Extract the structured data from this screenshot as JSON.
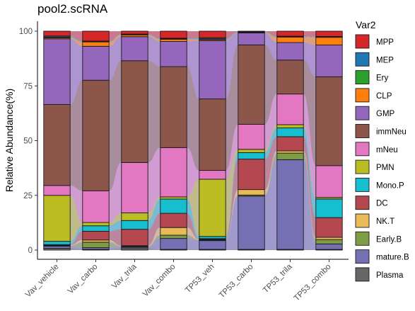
{
  "chart_data": {
    "type": "bar",
    "subtype": "stacked-alluvial",
    "title": "pool2.scRNA",
    "xlabel": "",
    "ylabel": "Relative Abundance(%)",
    "ylim": [
      0,
      100
    ],
    "yticks": [
      0,
      25,
      50,
      75,
      100
    ],
    "grid": false,
    "legend_title": "Var2",
    "legend_position": "right",
    "categories": [
      "Vav_vehicle",
      "Vav_carbo",
      "Vav_trila",
      "Vav_combo",
      "TP53_veh",
      "TP53_carbo",
      "TP53_trila",
      "TP53_combo"
    ],
    "series": [
      {
        "name": "Plasma",
        "color": "#666666",
        "values": [
          0.8,
          0.3,
          1.0,
          0.3,
          0.3,
          0.3,
          0.3,
          0.3
        ]
      },
      {
        "name": "mature.B",
        "color": "#7570B3",
        "values": [
          1.0,
          0.8,
          0.5,
          5.0,
          4.0,
          24.5,
          41.0,
          2.5
        ]
      },
      {
        "name": "Early.B",
        "color": "#7D9C45",
        "values": [
          0.2,
          2.5,
          0.3,
          1.5,
          0.3,
          0.5,
          3.0,
          2.0
        ]
      },
      {
        "name": "NK.T",
        "color": "#E9BA58",
        "values": [
          0.3,
          1.0,
          0.2,
          3.5,
          0.3,
          2.5,
          1.0,
          1.0
        ]
      },
      {
        "name": "DC",
        "color": "#B4474F",
        "values": [
          0.2,
          4.0,
          7.5,
          6.5,
          0.3,
          14.0,
          6.5,
          9.0
        ]
      },
      {
        "name": "Mono.P",
        "color": "#17BECF",
        "values": [
          1.5,
          2.5,
          4.0,
          6.5,
          1.0,
          3.0,
          4.0,
          8.5
        ]
      },
      {
        "name": "PMN",
        "color": "#BCBD22",
        "values": [
          21.0,
          1.5,
          3.5,
          1.0,
          26.0,
          1.5,
          1.5,
          0.7
        ]
      },
      {
        "name": "mNeu",
        "color": "#E377C2",
        "values": [
          4.5,
          14.5,
          23.0,
          22.5,
          4.0,
          11.5,
          14.0,
          14.5
        ]
      },
      {
        "name": "immNeu",
        "color": "#8C564B",
        "values": [
          37.0,
          50.5,
          46.5,
          37.0,
          32.5,
          36.5,
          15.5,
          40.5
        ]
      },
      {
        "name": "GMP",
        "color": "#9467BD",
        "values": [
          30.0,
          15.5,
          11.0,
          11.5,
          26.5,
          5.5,
          8.0,
          14.5
        ]
      },
      {
        "name": "CLP",
        "color": "#FF7F0E",
        "values": [
          0.5,
          2.0,
          0.8,
          1.0,
          0.5,
          0.2,
          2.5,
          3.5
        ]
      },
      {
        "name": "Ery",
        "color": "#2CA02C",
        "values": [
          0.3,
          0.2,
          0.2,
          0.2,
          0.3,
          0.2,
          0.2,
          0.2
        ]
      },
      {
        "name": "MEP",
        "color": "#1F77B4",
        "values": [
          0.5,
          0.2,
          0.2,
          0.3,
          0.5,
          0.2,
          0.2,
          0.2
        ]
      },
      {
        "name": "MPP",
        "color": "#D62728",
        "values": [
          2.2,
          4.5,
          1.3,
          3.2,
          3.0,
          0.2,
          2.3,
          2.4
        ]
      }
    ],
    "legend_order": [
      "MPP",
      "MEP",
      "Ery",
      "CLP",
      "GMP",
      "immNeu",
      "mNeu",
      "PMN",
      "Mono.P",
      "DC",
      "NK.T",
      "Early.B",
      "mature.B",
      "Plasma"
    ]
  }
}
